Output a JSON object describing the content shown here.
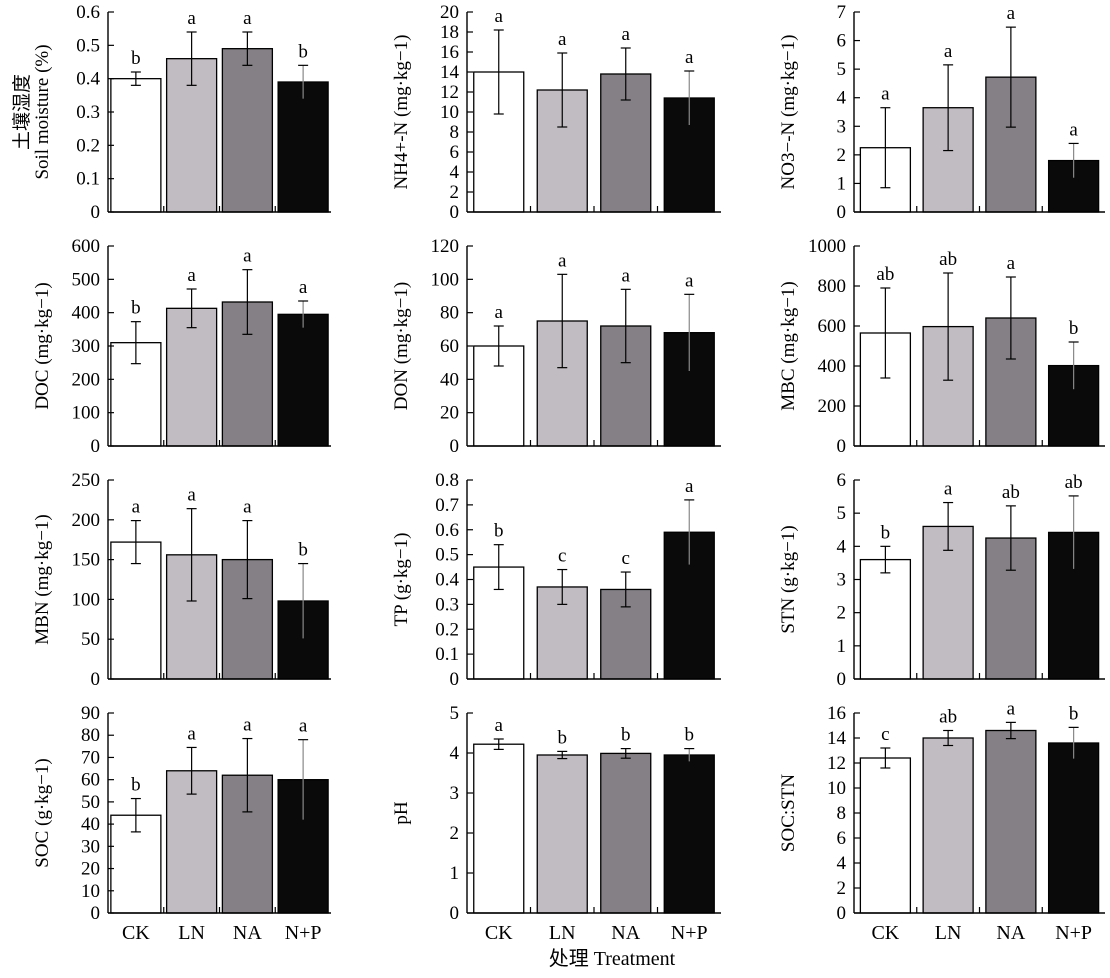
{
  "figure": {
    "xlabel": "处理 Treatment",
    "categories": [
      "CK",
      "LN",
      "NA",
      "N+P"
    ],
    "bar_colors": [
      "#ffffff",
      "#c1bcc1",
      "#848085",
      "#0a0a0a"
    ]
  },
  "chart_data": [
    {
      "type": "bar",
      "id": "soil_moisture",
      "ylabel_cn": "土壤湿度",
      "ylabel": "Soil moisture (%)",
      "ylim": [
        0,
        0.6
      ],
      "ticks": [
        "0",
        "0.1",
        "0.2",
        "0.3",
        "0.4",
        "0.5",
        "0.6"
      ],
      "categories": [
        "CK",
        "LN",
        "NA",
        "N+P"
      ],
      "values": [
        0.4,
        0.46,
        0.49,
        0.39
      ],
      "error": [
        0.02,
        0.08,
        0.05,
        0.05
      ],
      "letters": [
        "b",
        "a",
        "a",
        "b"
      ]
    },
    {
      "type": "bar",
      "id": "nh4",
      "ylabel": "NH4+-N (mg·kg−1)",
      "ylim": [
        0,
        20
      ],
      "ticks": [
        "0",
        "2",
        "4",
        "6",
        "8",
        "10",
        "12",
        "14",
        "16",
        "18",
        "20"
      ],
      "categories": [
        "CK",
        "LN",
        "NA",
        "N+P"
      ],
      "values": [
        14.0,
        12.2,
        13.8,
        11.4
      ],
      "error": [
        4.2,
        3.7,
        2.6,
        2.7
      ],
      "letters": [
        "a",
        "a",
        "a",
        "a"
      ]
    },
    {
      "type": "bar",
      "id": "no3",
      "ylabel": "NO3−-N (mg·kg−1)",
      "ylim": [
        0,
        7
      ],
      "ticks": [
        "0",
        "1",
        "2",
        "3",
        "4",
        "5",
        "6",
        "7"
      ],
      "categories": [
        "CK",
        "LN",
        "NA",
        "N+P"
      ],
      "values": [
        2.25,
        3.65,
        4.72,
        1.8
      ],
      "error": [
        1.4,
        1.5,
        1.75,
        0.6
      ],
      "letters": [
        "a",
        "a",
        "a",
        "a"
      ]
    },
    {
      "type": "bar",
      "id": "doc",
      "ylabel": "DOC (mg·kg−1)",
      "ylim": [
        0,
        600
      ],
      "ticks": [
        "0",
        "100",
        "200",
        "300",
        "400",
        "500",
        "600"
      ],
      "categories": [
        "CK",
        "LN",
        "NA",
        "N+P"
      ],
      "values": [
        310,
        413,
        432,
        395
      ],
      "error": [
        63,
        58,
        97,
        40
      ],
      "letters": [
        "b",
        "a",
        "a",
        "a"
      ]
    },
    {
      "type": "bar",
      "id": "don",
      "ylabel": "DON (mg·kg−1)",
      "ylim": [
        0,
        120
      ],
      "ticks": [
        "0",
        "20",
        "40",
        "60",
        "80",
        "100",
        "120"
      ],
      "categories": [
        "CK",
        "LN",
        "NA",
        "N+P"
      ],
      "values": [
        60,
        75,
        72,
        68
      ],
      "error": [
        12,
        28,
        22,
        23
      ],
      "letters": [
        "a",
        "a",
        "a",
        "a"
      ]
    },
    {
      "type": "bar",
      "id": "mbc",
      "ylabel": "MBC (mg·kg−1)",
      "ylim": [
        0,
        1000
      ],
      "ticks": [
        "0",
        "200",
        "400",
        "600",
        "800",
        "1000"
      ],
      "categories": [
        "CK",
        "LN",
        "NA",
        "N+P"
      ],
      "values": [
        565,
        597,
        640,
        402
      ],
      "error": [
        225,
        268,
        205,
        118
      ],
      "letters": [
        "ab",
        "ab",
        "a",
        "b"
      ]
    },
    {
      "type": "bar",
      "id": "mbn",
      "ylabel": "MBN (mg·kg−1)",
      "ylim": [
        0,
        250
      ],
      "ticks": [
        "0",
        "50",
        "100",
        "150",
        "200",
        "250"
      ],
      "categories": [
        "CK",
        "LN",
        "NA",
        "N+P"
      ],
      "values": [
        172,
        156,
        150,
        98
      ],
      "error": [
        27,
        58,
        49,
        47
      ],
      "letters": [
        "a",
        "a",
        "a",
        "b"
      ]
    },
    {
      "type": "bar",
      "id": "tp",
      "ylabel": "TP (g·kg−1)",
      "ylim": [
        0,
        0.8
      ],
      "ticks": [
        "0",
        "0.1",
        "0.2",
        "0.3",
        "0.4",
        "0.5",
        "0.6",
        "0.7",
        "0.8"
      ],
      "categories": [
        "CK",
        "LN",
        "NA",
        "N+P"
      ],
      "values": [
        0.45,
        0.37,
        0.36,
        0.59
      ],
      "error": [
        0.09,
        0.07,
        0.07,
        0.13
      ],
      "letters": [
        "b",
        "c",
        "c",
        "a"
      ]
    },
    {
      "type": "bar",
      "id": "stn",
      "ylabel": "STN (g·kg−1)",
      "ylim": [
        0,
        6
      ],
      "ticks": [
        "0",
        "1",
        "2",
        "3",
        "4",
        "5",
        "6"
      ],
      "categories": [
        "CK",
        "LN",
        "NA",
        "N+P"
      ],
      "values": [
        3.6,
        4.6,
        4.25,
        4.42
      ],
      "error": [
        0.4,
        0.72,
        0.97,
        1.1
      ],
      "letters": [
        "b",
        "a",
        "ab",
        "ab"
      ]
    },
    {
      "type": "bar",
      "id": "soc",
      "ylabel": "SOC (g·kg−1)",
      "ylim": [
        0,
        90
      ],
      "ticks": [
        "0",
        "10",
        "20",
        "30",
        "40",
        "50",
        "60",
        "70",
        "80",
        "90"
      ],
      "categories": [
        "CK",
        "LN",
        "NA",
        "N+P"
      ],
      "values": [
        44,
        64,
        62,
        60
      ],
      "error": [
        7.5,
        10.5,
        16.5,
        18
      ],
      "letters": [
        "b",
        "a",
        "a",
        "a"
      ]
    },
    {
      "type": "bar",
      "id": "ph",
      "ylabel": "pH",
      "ylim": [
        0,
        5
      ],
      "ticks": [
        "0",
        "1",
        "2",
        "3",
        "4",
        "5"
      ],
      "categories": [
        "CK",
        "LN",
        "NA",
        "N+P"
      ],
      "values": [
        4.22,
        3.95,
        3.99,
        3.95
      ],
      "error": [
        0.13,
        0.09,
        0.12,
        0.16
      ],
      "letters": [
        "a",
        "b",
        "b",
        "b"
      ]
    },
    {
      "type": "bar",
      "id": "soc_stn",
      "ylabel": "SOC:STN",
      "ylim": [
        0,
        16
      ],
      "ticks": [
        "0",
        "2",
        "4",
        "6",
        "8",
        "10",
        "12",
        "14",
        "16"
      ],
      "categories": [
        "CK",
        "LN",
        "NA",
        "N+P"
      ],
      "values": [
        12.4,
        14.0,
        14.6,
        13.6
      ],
      "error": [
        0.8,
        0.6,
        0.65,
        1.25
      ],
      "letters": [
        "c",
        "ab",
        "a",
        "b"
      ]
    }
  ]
}
